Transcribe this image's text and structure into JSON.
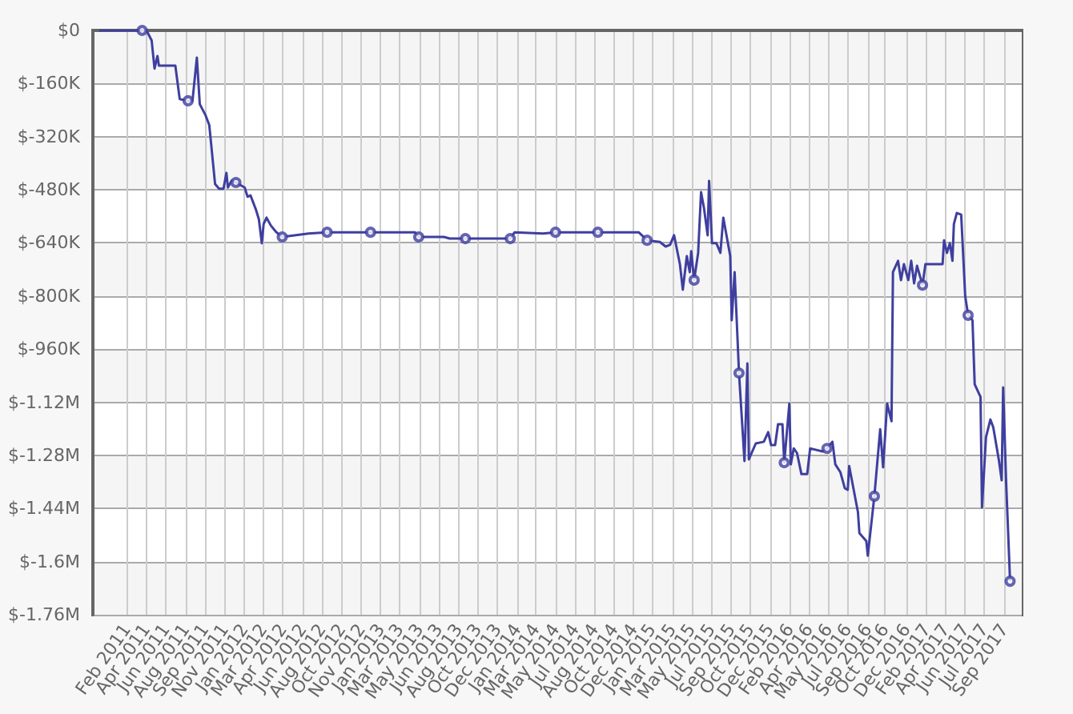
{
  "chart_data": {
    "type": "line",
    "xlim": [
      "2010-11-21",
      "2017-11-10"
    ],
    "xticks": [
      {
        "value": "2011-02-22",
        "label": "Feb 2011"
      },
      {
        "value": "2011-04-16",
        "label": "Apr 2011"
      },
      {
        "value": "2011-06-09",
        "label": "Jun 2011"
      },
      {
        "value": "2011-08-02",
        "label": "Aug 2011"
      },
      {
        "value": "2011-09-24",
        "label": "Sep 2011"
      },
      {
        "value": "2011-11-17",
        "label": "Nov 2011"
      },
      {
        "value": "2012-01-10",
        "label": "Jan 2012"
      },
      {
        "value": "2012-03-02",
        "label": "Mar 2012"
      },
      {
        "value": "2012-04-25",
        "label": "Apr 2012"
      },
      {
        "value": "2012-06-18",
        "label": "Jun 2012"
      },
      {
        "value": "2012-08-10",
        "label": "Aug 2012"
      },
      {
        "value": "2012-10-03",
        "label": "Oct 2012"
      },
      {
        "value": "2012-11-26",
        "label": "Nov 2012"
      },
      {
        "value": "2013-01-18",
        "label": "Jan 2013"
      },
      {
        "value": "2013-03-11",
        "label": "Mar 2013"
      },
      {
        "value": "2013-05-04",
        "label": "May 2013"
      },
      {
        "value": "2013-06-26",
        "label": "Jun 2013"
      },
      {
        "value": "2013-08-19",
        "label": "Aug 2013"
      },
      {
        "value": "2013-10-11",
        "label": "Oct 2013"
      },
      {
        "value": "2013-12-04",
        "label": "Dec 2013"
      },
      {
        "value": "2014-01-27",
        "label": "Jan 2014"
      },
      {
        "value": "2014-03-19",
        "label": "Mar 2014"
      },
      {
        "value": "2014-05-12",
        "label": "May 2014"
      },
      {
        "value": "2014-07-05",
        "label": "Jul 2014"
      },
      {
        "value": "2014-08-27",
        "label": "Aug 2014"
      },
      {
        "value": "2014-10-20",
        "label": "Oct 2014"
      },
      {
        "value": "2014-12-12",
        "label": "Dec 2014"
      },
      {
        "value": "2015-01-31",
        "label": "Jan 2015"
      },
      {
        "value": "2015-03-28",
        "label": "Mar 2015"
      },
      {
        "value": "2015-05-20",
        "label": "May 2015"
      },
      {
        "value": "2015-07-13",
        "label": "Jul 2015"
      },
      {
        "value": "2015-09-06",
        "label": "Sep 2015"
      },
      {
        "value": "2015-10-28",
        "label": "Oct 2015"
      },
      {
        "value": "2015-12-21",
        "label": "Dec 2015"
      },
      {
        "value": "2016-02-13",
        "label": "Feb 2016"
      },
      {
        "value": "2016-04-06",
        "label": "Apr 2016"
      },
      {
        "value": "2016-05-29",
        "label": "May 2016"
      },
      {
        "value": "2016-07-21",
        "label": "Jul 2016"
      },
      {
        "value": "2016-09-14",
        "label": "Sep 2016"
      },
      {
        "value": "2016-10-31",
        "label": "Oct 2016"
      },
      {
        "value": "2016-12-29",
        "label": "Dec 2016"
      },
      {
        "value": "2017-02-22",
        "label": "Feb 2017"
      },
      {
        "value": "2017-04-15",
        "label": "Apr 2017"
      },
      {
        "value": "2017-06-08",
        "label": "Jun 2017"
      },
      {
        "value": "2017-07-30",
        "label": "Jul 2017"
      },
      {
        "value": "2017-09-23",
        "label": "Sep 2017"
      }
    ],
    "ylim": [
      -1760000,
      0
    ],
    "yticks": [
      {
        "value": 0,
        "label": "$0"
      },
      {
        "value": -160000,
        "label": "$-160K"
      },
      {
        "value": -320000,
        "label": "$-320K"
      },
      {
        "value": -480000,
        "label": "$-480K"
      },
      {
        "value": -640000,
        "label": "$-640K"
      },
      {
        "value": -800000,
        "label": "$-800K"
      },
      {
        "value": -960000,
        "label": "$-960K"
      },
      {
        "value": -1120000,
        "label": "$-1.12M"
      },
      {
        "value": -1280000,
        "label": "$-1.28M"
      },
      {
        "value": -1440000,
        "label": "$-1.44M"
      },
      {
        "value": -1600000,
        "label": "$-1.6M"
      },
      {
        "value": -1760000,
        "label": "$-1.76M"
      }
    ],
    "grid": true,
    "series": [
      {
        "marker": "none",
        "color": "#3f3f9f",
        "x": [
          "2010-12-08",
          "2011-04-05",
          "2011-04-17",
          "2011-05-01",
          "2011-05-09",
          "2011-05-17",
          "2011-05-21",
          "2011-07-05",
          "2011-07-17",
          "2011-08-09",
          "2011-08-21",
          "2011-09-02",
          "2011-09-10",
          "2011-09-26",
          "2011-10-06",
          "2011-10-22",
          "2011-11-02",
          "2011-11-14",
          "2011-11-22",
          "2011-11-26",
          "2011-12-06",
          "2011-12-18",
          "2012-01-11",
          "2012-01-19",
          "2012-01-27",
          "2012-02-11",
          "2012-02-19",
          "2012-02-27",
          "2012-03-03",
          "2012-03-11",
          "2012-03-23",
          "2012-04-07",
          "2012-04-23",
          "2012-07-04",
          "2012-08-24",
          "2012-12-21",
          "2013-04-22",
          "2013-05-02",
          "2013-07-10",
          "2013-07-26",
          "2013-09-07",
          "2014-01-08",
          "2014-01-20",
          "2014-04-08",
          "2014-05-12",
          "2014-09-05",
          "2014-12-26",
          "2015-01-18",
          "2015-02-22",
          "2015-03-10",
          "2015-03-22",
          "2015-04-02",
          "2015-04-18",
          "2015-04-26",
          "2015-05-07",
          "2015-05-15",
          "2015-05-19",
          "2015-05-27",
          "2015-06-07",
          "2015-06-15",
          "2015-06-23",
          "2015-07-03",
          "2015-07-07",
          "2015-07-15",
          "2015-07-27",
          "2015-08-07",
          "2015-08-15",
          "2015-09-03",
          "2015-09-07",
          "2015-09-15",
          "2015-09-27",
          "2015-10-12",
          "2015-10-20",
          "2015-10-24",
          "2015-11-12",
          "2015-12-04",
          "2015-12-16",
          "2015-12-24",
          "2016-01-04",
          "2016-01-12",
          "2016-01-24",
          "2016-01-29",
          "2016-02-12",
          "2016-02-16",
          "2016-02-24",
          "2016-03-04",
          "2016-03-16",
          "2016-04-01",
          "2016-04-09",
          "2016-05-13",
          "2016-05-25",
          "2016-06-09",
          "2016-06-17",
          "2016-07-01",
          "2016-07-13",
          "2016-07-21",
          "2016-07-25",
          "2016-08-18",
          "2016-08-22",
          "2016-09-10",
          "2016-09-14",
          "2016-10-02",
          "2016-10-18",
          "2016-10-26",
          "2016-11-06",
          "2016-11-18",
          "2016-11-22",
          "2016-12-06",
          "2016-12-14",
          "2016-12-22",
          "2017-01-03",
          "2017-01-11",
          "2017-01-19",
          "2017-01-27",
          "2017-02-11",
          "2017-02-19",
          "2017-04-07",
          "2017-04-11",
          "2017-04-19",
          "2017-04-27",
          "2017-05-04",
          "2017-05-08",
          "2017-05-16",
          "2017-05-28",
          "2017-06-08",
          "2017-06-16",
          "2017-06-28",
          "2017-07-04",
          "2017-07-20",
          "2017-07-24",
          "2017-08-04",
          "2017-08-16",
          "2017-08-24",
          "2017-09-08",
          "2017-09-16",
          "2017-09-20",
          "2017-09-28",
          "2017-10-09"
        ],
        "values": [
          0,
          0,
          0,
          -30000,
          -115000,
          -77000,
          -106000,
          -106000,
          -207000,
          -212000,
          -212000,
          -82000,
          -222000,
          -256000,
          -285000,
          -463000,
          -477000,
          -477000,
          -429000,
          -473000,
          -453000,
          -458000,
          -473000,
          -501000,
          -497000,
          -540000,
          -569000,
          -641000,
          -583000,
          -564000,
          -588000,
          -608000,
          -622000,
          -612000,
          -608000,
          -608000,
          -608000,
          -622000,
          -622000,
          -627000,
          -627000,
          -627000,
          -608000,
          -612000,
          -608000,
          -608000,
          -608000,
          -632000,
          -637000,
          -651000,
          -646000,
          -617000,
          -704000,
          -781000,
          -680000,
          -728000,
          -665000,
          -752000,
          -670000,
          -487000,
          -535000,
          -617000,
          -453000,
          -641000,
          -641000,
          -670000,
          -564000,
          -680000,
          -873000,
          -728000,
          -1032000,
          -1297000,
          -1003000,
          -1292000,
          -1244000,
          -1239000,
          -1210000,
          -1249000,
          -1249000,
          -1186000,
          -1186000,
          -1302000,
          -1124000,
          -1307000,
          -1259000,
          -1273000,
          -1336000,
          -1336000,
          -1259000,
          -1268000,
          -1259000,
          -1239000,
          -1307000,
          -1331000,
          -1379000,
          -1384000,
          -1312000,
          -1451000,
          -1514000,
          -1538000,
          -1582000,
          -1403000,
          -1201000,
          -1316000,
          -1124000,
          -1177000,
          -728000,
          -694000,
          -752000,
          -704000,
          -752000,
          -694000,
          -762000,
          -709000,
          -767000,
          -704000,
          -704000,
          -632000,
          -670000,
          -641000,
          -694000,
          -583000,
          -550000,
          -555000,
          -800000,
          -858000,
          -873000,
          -1066000,
          -1104000,
          -1437000,
          -1225000,
          -1172000,
          -1196000,
          -1292000,
          -1355000,
          -1075000,
          -1355000,
          -1659000
        ]
      },
      {
        "type": "scatter",
        "marker": "circle",
        "color": "#3f3f9f",
        "x": [
          "2011-04-05",
          "2011-08-09",
          "2011-12-18",
          "2012-04-23",
          "2012-08-24",
          "2012-12-21",
          "2013-05-02",
          "2013-09-07",
          "2014-01-08",
          "2014-05-12",
          "2014-09-05",
          "2015-01-18",
          "2015-05-27",
          "2015-09-27",
          "2016-01-29",
          "2016-05-25",
          "2016-10-02",
          "2017-02-11",
          "2017-06-16",
          "2017-10-09"
        ],
        "values": [
          0,
          -212000,
          -458000,
          -622000,
          -608000,
          -608000,
          -622000,
          -627000,
          -627000,
          -608000,
          -608000,
          -632000,
          -752000,
          -1032000,
          -1302000,
          -1259000,
          -1403000,
          -767000,
          -858000,
          -1659000
        ]
      }
    ]
  }
}
